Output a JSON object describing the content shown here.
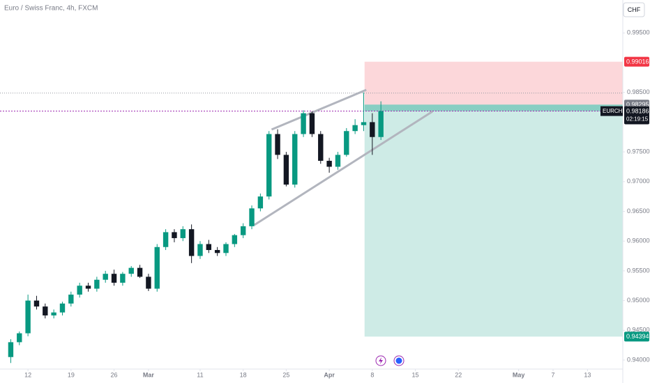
{
  "chart_data": {
    "type": "candlestick",
    "title": "Euro / Swiss Franc, 4h, FXCM",
    "currency": "CHF",
    "symbol": "EURCHF",
    "last_price": 0.98186,
    "countdown": "02:19:15",
    "up_color": "#089981",
    "down_color": "#131722",
    "x": [
      -2,
      -1,
      0,
      1,
      2,
      3,
      4,
      5,
      6,
      7,
      8,
      9,
      10,
      11,
      12,
      13,
      14,
      15,
      16,
      17,
      18,
      19,
      20,
      21,
      22,
      23,
      24,
      25,
      26,
      27,
      28,
      29,
      30,
      31,
      32,
      33,
      34,
      35,
      36,
      37,
      38,
      39,
      40,
      41
    ],
    "open": [
      0.9405,
      0.943,
      0.9445,
      0.95,
      0.949,
      0.9475,
      0.948,
      0.9495,
      0.951,
      0.9525,
      0.952,
      0.9535,
      0.9545,
      0.953,
      0.9545,
      0.9555,
      0.954,
      0.952,
      0.959,
      0.9615,
      0.9605,
      0.962,
      0.9575,
      0.9595,
      0.9585,
      0.958,
      0.9595,
      0.961,
      0.9625,
      0.9655,
      0.9675,
      0.978,
      0.9745,
      0.9695,
      0.978,
      0.9815,
      0.978,
      0.9735,
      0.9725,
      0.9745,
      0.9785,
      0.9795,
      0.98,
      0.9775
    ],
    "high": [
      0.9435,
      0.9448,
      0.951,
      0.9508,
      0.9495,
      0.9485,
      0.9498,
      0.9515,
      0.953,
      0.953,
      0.954,
      0.955,
      0.9552,
      0.9548,
      0.9558,
      0.956,
      0.9545,
      0.9595,
      0.962,
      0.962,
      0.9625,
      0.9628,
      0.96,
      0.9602,
      0.959,
      0.9598,
      0.9612,
      0.963,
      0.966,
      0.968,
      0.9785,
      0.9788,
      0.975,
      0.9785,
      0.982,
      0.9818,
      0.9785,
      0.974,
      0.975,
      0.979,
      0.9805,
      0.985,
      0.9815,
      0.9835
    ],
    "low": [
      0.9395,
      0.9425,
      0.944,
      0.9485,
      0.947,
      0.947,
      0.9475,
      0.949,
      0.9505,
      0.9515,
      0.9515,
      0.953,
      0.9525,
      0.9525,
      0.954,
      0.9538,
      0.9516,
      0.9515,
      0.9585,
      0.9598,
      0.96,
      0.9563,
      0.957,
      0.958,
      0.9575,
      0.9575,
      0.959,
      0.9605,
      0.962,
      0.965,
      0.967,
      0.9738,
      0.9692,
      0.969,
      0.9775,
      0.9775,
      0.973,
      0.9715,
      0.972,
      0.9742,
      0.978,
      0.9785,
      0.9745,
      0.977
    ],
    "close": [
      0.943,
      0.9445,
      0.95,
      0.949,
      0.9475,
      0.948,
      0.9495,
      0.951,
      0.9525,
      0.952,
      0.9535,
      0.9545,
      0.953,
      0.9545,
      0.9555,
      0.954,
      0.952,
      0.959,
      0.9615,
      0.9605,
      0.962,
      0.9575,
      0.9595,
      0.9585,
      0.958,
      0.9595,
      0.961,
      0.9625,
      0.9655,
      0.9675,
      0.978,
      0.9745,
      0.9695,
      0.978,
      0.9815,
      0.978,
      0.9735,
      0.9725,
      0.9745,
      0.9785,
      0.9795,
      0.98,
      0.9775,
      0.98186
    ],
    "xlim": [
      -3.25,
      69.1
    ],
    "ylim": [
      0.93848,
      1.00054
    ],
    "xticks": [
      {
        "value": 0,
        "label": "12"
      },
      {
        "value": 5,
        "label": "19"
      },
      {
        "value": 10,
        "label": "26"
      },
      {
        "value": 14,
        "label": "Mar"
      },
      {
        "value": 20,
        "label": "11"
      },
      {
        "value": 25,
        "label": "18"
      },
      {
        "value": 30,
        "label": "25"
      },
      {
        "value": 35,
        "label": "Apr"
      },
      {
        "value": 40,
        "label": "8"
      },
      {
        "value": 45,
        "label": "15"
      },
      {
        "value": 50,
        "label": "22"
      },
      {
        "value": 57,
        "label": "May"
      },
      {
        "value": 61,
        "label": "7"
      },
      {
        "value": 65,
        "label": "13"
      }
    ],
    "yticks": [
      {
        "value": 0.995,
        "label": "0.99500"
      },
      {
        "value": 0.985,
        "label": "0.98500"
      },
      {
        "value": 0.975,
        "label": "0.97500"
      },
      {
        "value": 0.97,
        "label": "0.97000"
      },
      {
        "value": 0.965,
        "label": "0.96500"
      },
      {
        "value": 0.96,
        "label": "0.96000"
      },
      {
        "value": 0.955,
        "label": "0.95500"
      },
      {
        "value": 0.95,
        "label": "0.95000"
      },
      {
        "value": 0.945,
        "label": "0.94500"
      },
      {
        "value": 0.94,
        "label": "0.94000"
      }
    ],
    "position": {
      "start": 39.1,
      "end": 69.1,
      "entry": 0.98295,
      "stop": 0.99016,
      "target": 0.94394
    },
    "high_line": 0.9849,
    "trendlines": [
      {
        "x": [
          28.3,
          39.3
        ],
        "y": [
          0.97876,
          0.98543
        ]
      },
      {
        "x": [
          26.3,
          47
        ],
        "y": [
          0.96272,
          0.9818
        ]
      }
    ]
  }
}
